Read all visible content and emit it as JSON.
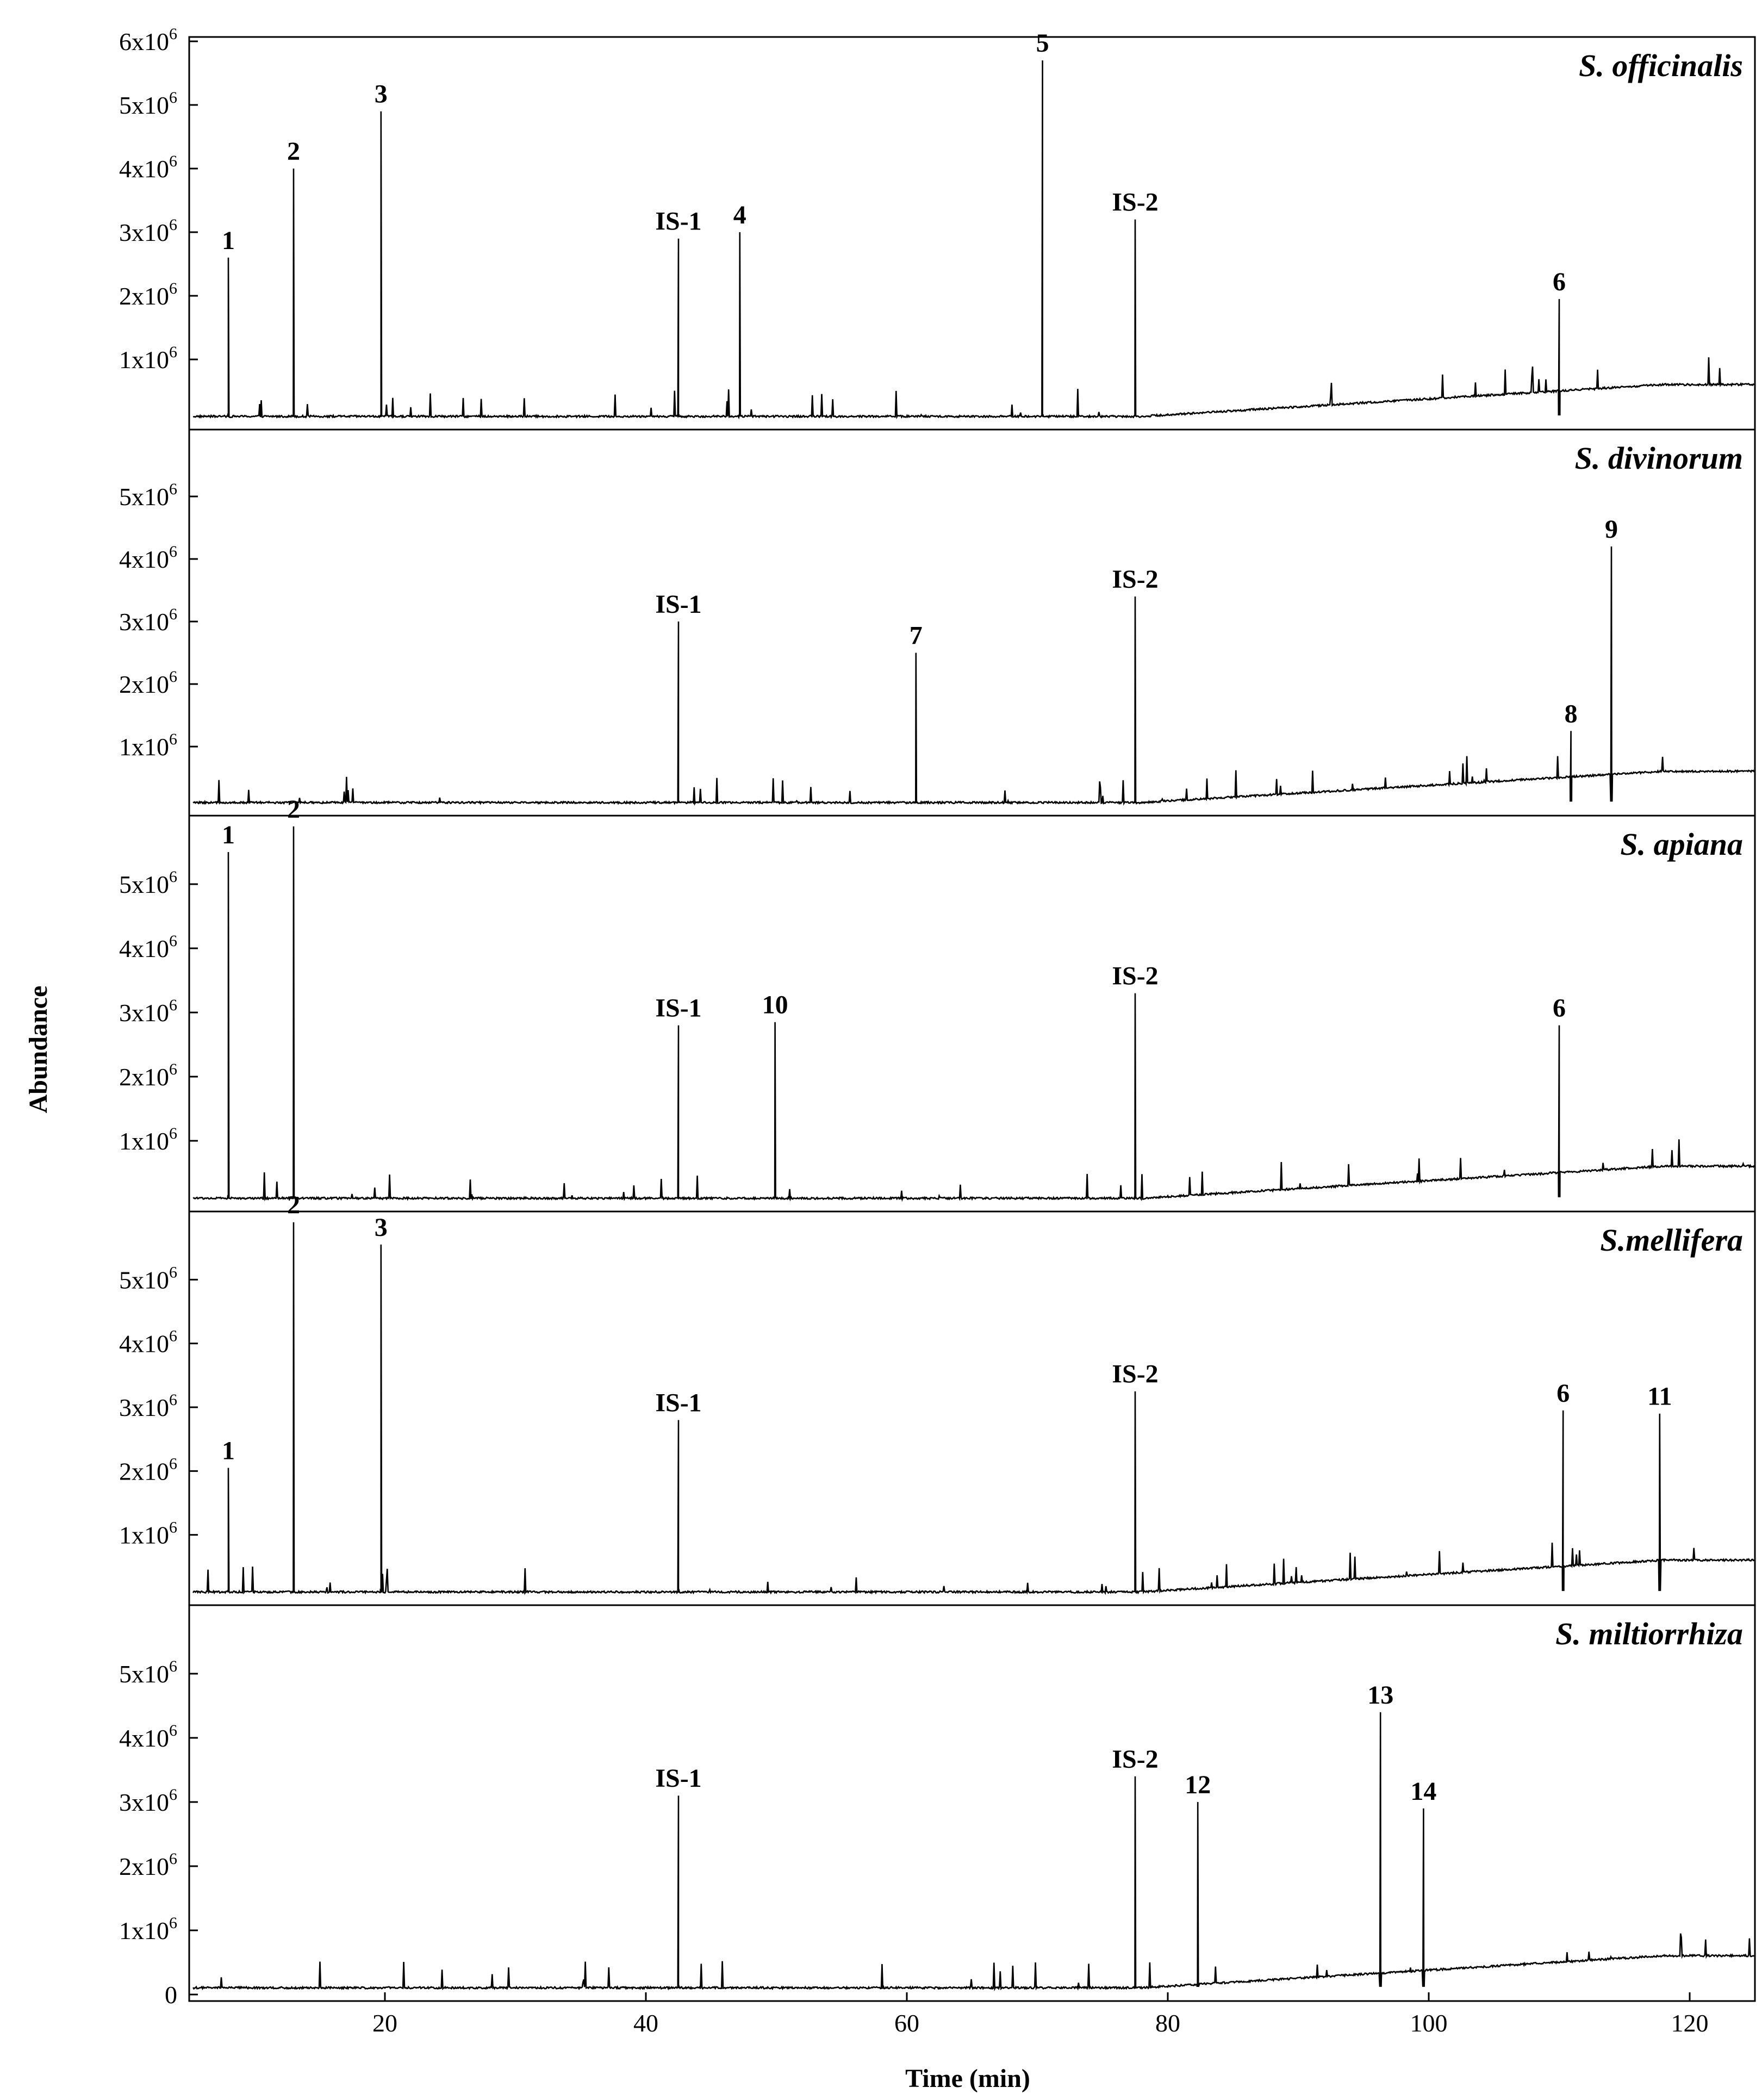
{
  "chart_data": {
    "type": "line",
    "xlabel": "Time (min)",
    "ylabel": "Abundance",
    "xlim": [
      5,
      125
    ],
    "xticks": [
      20,
      40,
      60,
      80,
      100,
      120
    ],
    "ylim": [
      0,
      6000000
    ],
    "grid": false,
    "panels": [
      {
        "name": "S. officinalis",
        "yticks": [
          "1x10",
          "2x10",
          "3x10",
          "4x10",
          "5x10",
          "6x10"
        ],
        "ytick_values": [
          1000000,
          2000000,
          3000000,
          4000000,
          5000000,
          6000000
        ],
        "peaks": [
          {
            "label": "1",
            "x": 8.0,
            "y": 2600000
          },
          {
            "label": "2",
            "x": 13.0,
            "y": 4000000
          },
          {
            "label": "3",
            "x": 19.7,
            "y": 4900000
          },
          {
            "label": "IS-1",
            "x": 42.5,
            "y": 2900000
          },
          {
            "label": "4",
            "x": 47.2,
            "y": 3000000
          },
          {
            "label": "5",
            "x": 70.4,
            "y": 5700000
          },
          {
            "label": "IS-2",
            "x": 77.5,
            "y": 3200000
          },
          {
            "label": "6",
            "x": 110.0,
            "y": 1950000
          }
        ]
      },
      {
        "name": "S. divinorum",
        "yticks": [
          "1x10",
          "2x10",
          "3x10",
          "4x10",
          "5x10"
        ],
        "ytick_values": [
          1000000,
          2000000,
          3000000,
          4000000,
          5000000
        ],
        "peaks": [
          {
            "label": "IS-1",
            "x": 42.5,
            "y": 3000000
          },
          {
            "label": "7",
            "x": 60.7,
            "y": 2500000
          },
          {
            "label": "IS-2",
            "x": 77.5,
            "y": 3400000
          },
          {
            "label": "8",
            "x": 110.9,
            "y": 1250000
          },
          {
            "label": "9",
            "x": 114.0,
            "y": 4200000
          }
        ]
      },
      {
        "name": "S. apiana",
        "yticks": [
          "1x10",
          "2x10",
          "3x10",
          "4x10",
          "5x10"
        ],
        "ytick_values": [
          1000000,
          2000000,
          3000000,
          4000000,
          5000000
        ],
        "peaks": [
          {
            "label": "1",
            "x": 8.0,
            "y": 5500000
          },
          {
            "label": "2",
            "x": 13.0,
            "y": 5900000
          },
          {
            "label": "IS-1",
            "x": 42.5,
            "y": 2800000
          },
          {
            "label": "10",
            "x": 49.9,
            "y": 2850000
          },
          {
            "label": "IS-2",
            "x": 77.5,
            "y": 3300000
          },
          {
            "label": "6",
            "x": 110.0,
            "y": 2800000
          }
        ]
      },
      {
        "name": "S.mellifera",
        "yticks": [
          "1x10",
          "2x10",
          "3x10",
          "4x10",
          "5x10"
        ],
        "ytick_values": [
          1000000,
          2000000,
          3000000,
          4000000,
          5000000
        ],
        "peaks": [
          {
            "label": "1",
            "x": 8.0,
            "y": 2050000
          },
          {
            "label": "2",
            "x": 13.0,
            "y": 5900000
          },
          {
            "label": "3",
            "x": 19.7,
            "y": 5550000
          },
          {
            "label": "IS-1",
            "x": 42.5,
            "y": 2800000
          },
          {
            "label": "IS-2",
            "x": 77.5,
            "y": 3250000
          },
          {
            "label": "6",
            "x": 110.3,
            "y": 2950000
          },
          {
            "label": "11",
            "x": 117.7,
            "y": 2900000
          }
        ]
      },
      {
        "name": "S. miltiorrhiza",
        "yticks": [
          "0",
          "1x10",
          "2x10",
          "3x10",
          "4x10",
          "5x10"
        ],
        "ytick_values": [
          0,
          1000000,
          2000000,
          3000000,
          4000000,
          5000000
        ],
        "peaks": [
          {
            "label": "IS-1",
            "x": 42.5,
            "y": 3100000
          },
          {
            "label": "IS-2",
            "x": 77.5,
            "y": 3400000
          },
          {
            "label": "12",
            "x": 82.3,
            "y": 3000000
          },
          {
            "label": "13",
            "x": 96.3,
            "y": 4400000
          },
          {
            "label": "14",
            "x": 99.6,
            "y": 2900000
          }
        ]
      }
    ],
    "tick_exponent": "6"
  }
}
